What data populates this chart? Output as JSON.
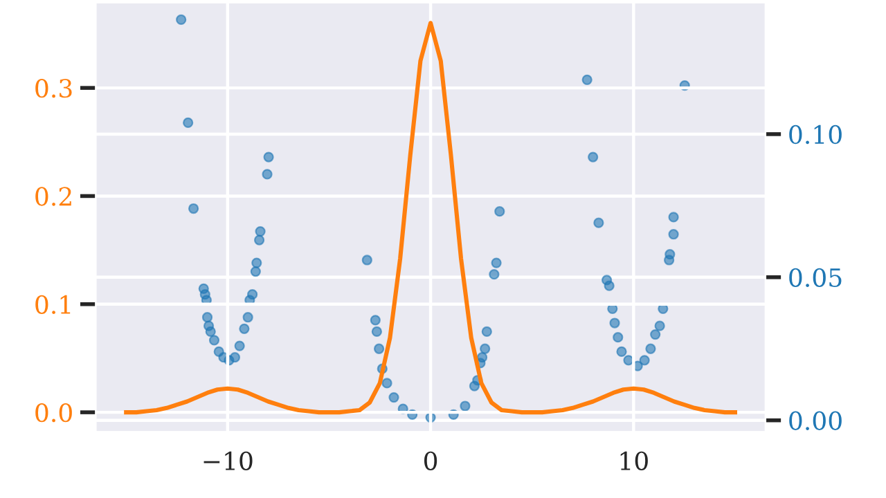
{
  "chart_data": {
    "type": "line",
    "xlim": [
      -16.5,
      16.5
    ],
    "xticks": [
      {
        "value": -10,
        "label": "−10"
      },
      0,
      10
    ],
    "ylim": [
      -0.018,
      0.379
    ],
    "yticks": [
      {
        "value": 0.0,
        "label": "0.0"
      },
      0.1,
      0.2,
      0.3
    ],
    "y2lim": [
      -0.004,
      0.146
    ],
    "y2ticks": [
      {
        "value": 0.0,
        "label": "0.00"
      },
      {
        "value": 0.05,
        "label": "0.05"
      },
      {
        "value": 0.1,
        "label": "0.10"
      }
    ],
    "grid": true,
    "series": [
      {
        "color": "#ff7f0e",
        "x": [
          -15,
          -14.5,
          -14,
          -13.5,
          -13,
          -12.5,
          -12,
          -11.5,
          -11,
          -10.5,
          -10,
          -9.5,
          -9,
          -8.5,
          -8,
          -7.5,
          -7,
          -6.5,
          -6,
          -5.5,
          -5,
          -4.5,
          -4,
          -3.5,
          -3,
          -2.5,
          -2,
          -1.5,
          -1,
          -0.5,
          0,
          0.5,
          1,
          1.5,
          2,
          2.5,
          3,
          3.5,
          4,
          4.5,
          5,
          5.5,
          6,
          6.5,
          7,
          7.5,
          8,
          8.5,
          9,
          9.5,
          10,
          10.5,
          11,
          11.5,
          12,
          12.5,
          13,
          13.5,
          14,
          14.5,
          15
        ],
        "values": [
          0.0,
          0.0,
          0.001,
          0.002,
          0.004,
          0.007,
          0.01,
          0.014,
          0.018,
          0.021,
          0.022,
          0.021,
          0.018,
          0.014,
          0.01,
          0.007,
          0.004,
          0.002,
          0.001,
          0.0,
          0.0,
          0.0,
          0.001,
          0.002,
          0.009,
          0.027,
          0.069,
          0.142,
          0.238,
          0.325,
          0.36,
          0.325,
          0.238,
          0.142,
          0.069,
          0.027,
          0.009,
          0.002,
          0.001,
          0.0,
          0.0,
          0.0,
          0.001,
          0.002,
          0.004,
          0.007,
          0.01,
          0.014,
          0.018,
          0.021,
          0.022,
          0.021,
          0.018,
          0.014,
          0.01,
          0.007,
          0.004,
          0.002,
          0.001,
          0.0,
          0.0
        ]
      },
      {
        "type": "scatter",
        "axis": "y2",
        "color": "#1f77b4",
        "marker": "circle",
        "x": [
          -12.29,
          -11.95,
          -11.68,
          -11.18,
          -11.11,
          -11.04,
          -11.0,
          -10.93,
          -10.84,
          -10.66,
          -10.43,
          -10.2,
          -9.93,
          -9.64,
          -9.41,
          -9.18,
          -9.0,
          -8.91,
          -8.78,
          -8.62,
          -8.57,
          -8.44,
          -8.39,
          -8.05,
          -7.98,
          -3.13,
          -2.72,
          -2.65,
          -2.54,
          -2.38,
          -2.15,
          -1.81,
          -1.36,
          -0.9,
          0,
          1.13,
          1.7,
          2.16,
          2.31,
          2.45,
          2.54,
          2.68,
          2.77,
          3.13,
          3.24,
          3.4,
          7.71,
          8.0,
          8.28,
          8.68,
          8.8,
          8.96,
          9.07,
          9.23,
          9.41,
          9.75,
          10.2,
          10.54,
          10.84,
          11.07,
          11.29,
          11.45,
          11.75,
          11.79,
          11.97,
          11.97,
          12.52
        ],
        "values": [
          0.14,
          0.104,
          0.074,
          0.046,
          0.044,
          0.042,
          0.036,
          0.033,
          0.031,
          0.028,
          0.024,
          0.022,
          0.021,
          0.022,
          0.026,
          0.032,
          0.036,
          0.042,
          0.044,
          0.052,
          0.055,
          0.063,
          0.066,
          0.086,
          0.092,
          0.056,
          0.035,
          0.031,
          0.025,
          0.018,
          0.013,
          0.008,
          0.004,
          0.002,
          0.001,
          0.002,
          0.005,
          0.012,
          0.014,
          0.02,
          0.022,
          0.025,
          0.031,
          0.051,
          0.055,
          0.073,
          0.119,
          0.092,
          0.069,
          0.049,
          0.047,
          0.039,
          0.034,
          0.029,
          0.024,
          0.021,
          0.019,
          0.021,
          0.025,
          0.03,
          0.033,
          0.039,
          0.056,
          0.058,
          0.065,
          0.071,
          0.117
        ]
      }
    ]
  }
}
